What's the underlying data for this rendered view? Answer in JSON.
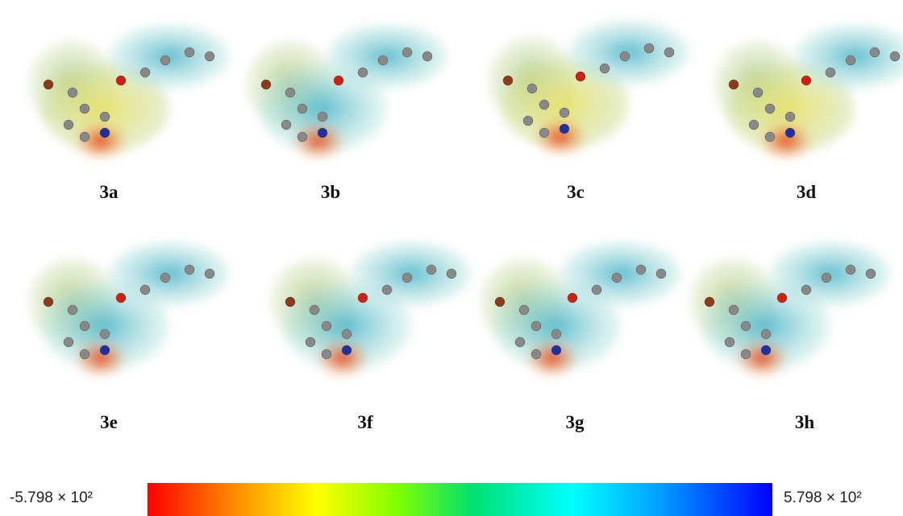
{
  "panels": [
    {
      "label": "3a"
    },
    {
      "label": "3b"
    },
    {
      "label": "3c"
    },
    {
      "label": "3d"
    },
    {
      "label": "3e"
    },
    {
      "label": "3f"
    },
    {
      "label": "3g"
    },
    {
      "label": "3h"
    }
  ],
  "colorbar": {
    "min_label": "-5.798 × 10²",
    "max_label": "5.798 × 10²"
  }
}
